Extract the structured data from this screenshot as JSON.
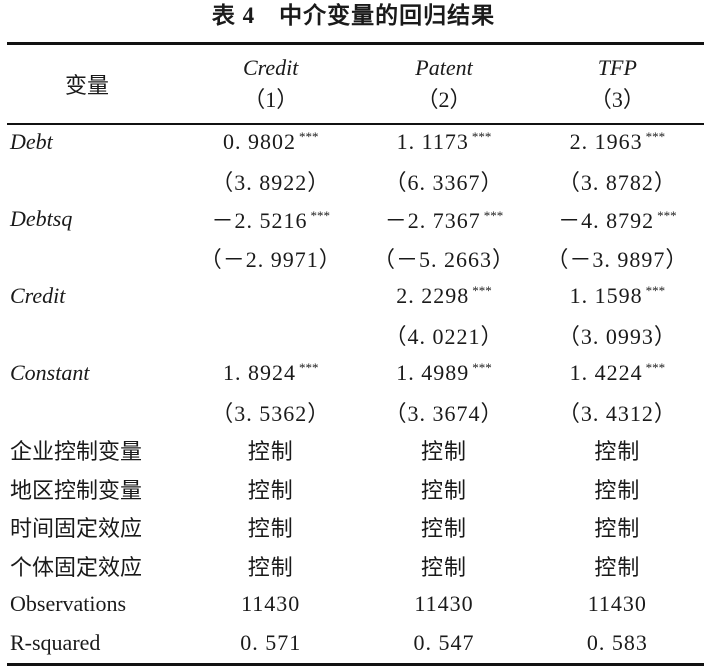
{
  "title": "表 4　中介变量的回归结果",
  "header": {
    "var_label": "变量",
    "columns": [
      {
        "name": "Credit",
        "num": "（1）"
      },
      {
        "name": "Patent",
        "num": "（2）"
      },
      {
        "name": "TFP",
        "num": "（3）"
      }
    ]
  },
  "rows": [
    {
      "label": "Debt",
      "italic": true,
      "cells": [
        {
          "v": "0. 9802",
          "s": "***"
        },
        {
          "v": "1. 1173",
          "s": "***"
        },
        {
          "v": "2. 1963",
          "s": "***"
        }
      ]
    },
    {
      "label": "",
      "italic": false,
      "cells": [
        {
          "v": "（3. 8922）",
          "s": ""
        },
        {
          "v": "（6. 3367）",
          "s": ""
        },
        {
          "v": "（3. 8782）",
          "s": ""
        }
      ]
    },
    {
      "label": "Debtsq",
      "italic": true,
      "cells": [
        {
          "v": "－2. 5216",
          "s": "***"
        },
        {
          "v": "－2. 7367",
          "s": "***"
        },
        {
          "v": "－4. 8792",
          "s": "***"
        }
      ]
    },
    {
      "label": "",
      "italic": false,
      "cells": [
        {
          "v": "（－2. 9971）",
          "s": ""
        },
        {
          "v": "（－5. 2663）",
          "s": ""
        },
        {
          "v": "（－3. 9897）",
          "s": ""
        }
      ]
    },
    {
      "label": "Credit",
      "italic": true,
      "cells": [
        {
          "v": "",
          "s": ""
        },
        {
          "v": "2. 2298",
          "s": "***"
        },
        {
          "v": "1. 1598",
          "s": "***"
        }
      ]
    },
    {
      "label": "",
      "italic": false,
      "cells": [
        {
          "v": "",
          "s": ""
        },
        {
          "v": "（4. 0221）",
          "s": ""
        },
        {
          "v": "（3. 0993）",
          "s": ""
        }
      ]
    },
    {
      "label": "Constant",
      "italic": true,
      "cells": [
        {
          "v": "1. 8924",
          "s": "***"
        },
        {
          "v": "1. 4989",
          "s": "***"
        },
        {
          "v": "1. 4224",
          "s": "***"
        }
      ]
    },
    {
      "label": "",
      "italic": false,
      "cells": [
        {
          "v": "（3. 5362）",
          "s": ""
        },
        {
          "v": "（3. 3674）",
          "s": ""
        },
        {
          "v": "（3. 4312）",
          "s": ""
        }
      ]
    },
    {
      "label": "企业控制变量",
      "italic": false,
      "cells": [
        {
          "v": "控制",
          "s": ""
        },
        {
          "v": "控制",
          "s": ""
        },
        {
          "v": "控制",
          "s": ""
        }
      ]
    },
    {
      "label": "地区控制变量",
      "italic": false,
      "cells": [
        {
          "v": "控制",
          "s": ""
        },
        {
          "v": "控制",
          "s": ""
        },
        {
          "v": "控制",
          "s": ""
        }
      ]
    },
    {
      "label": "时间固定效应",
      "italic": false,
      "cells": [
        {
          "v": "控制",
          "s": ""
        },
        {
          "v": "控制",
          "s": ""
        },
        {
          "v": "控制",
          "s": ""
        }
      ]
    },
    {
      "label": "个体固定效应",
      "italic": false,
      "cells": [
        {
          "v": "控制",
          "s": ""
        },
        {
          "v": "控制",
          "s": ""
        },
        {
          "v": "控制",
          "s": ""
        }
      ]
    },
    {
      "label": "Observations",
      "italic": false,
      "cells": [
        {
          "v": "11430",
          "s": ""
        },
        {
          "v": "11430",
          "s": ""
        },
        {
          "v": "11430",
          "s": ""
        }
      ]
    },
    {
      "label": "R-squared",
      "italic": false,
      "cells": [
        {
          "v": "0. 571",
          "s": ""
        },
        {
          "v": "0. 547",
          "s": ""
        },
        {
          "v": "0. 583",
          "s": ""
        }
      ]
    }
  ]
}
